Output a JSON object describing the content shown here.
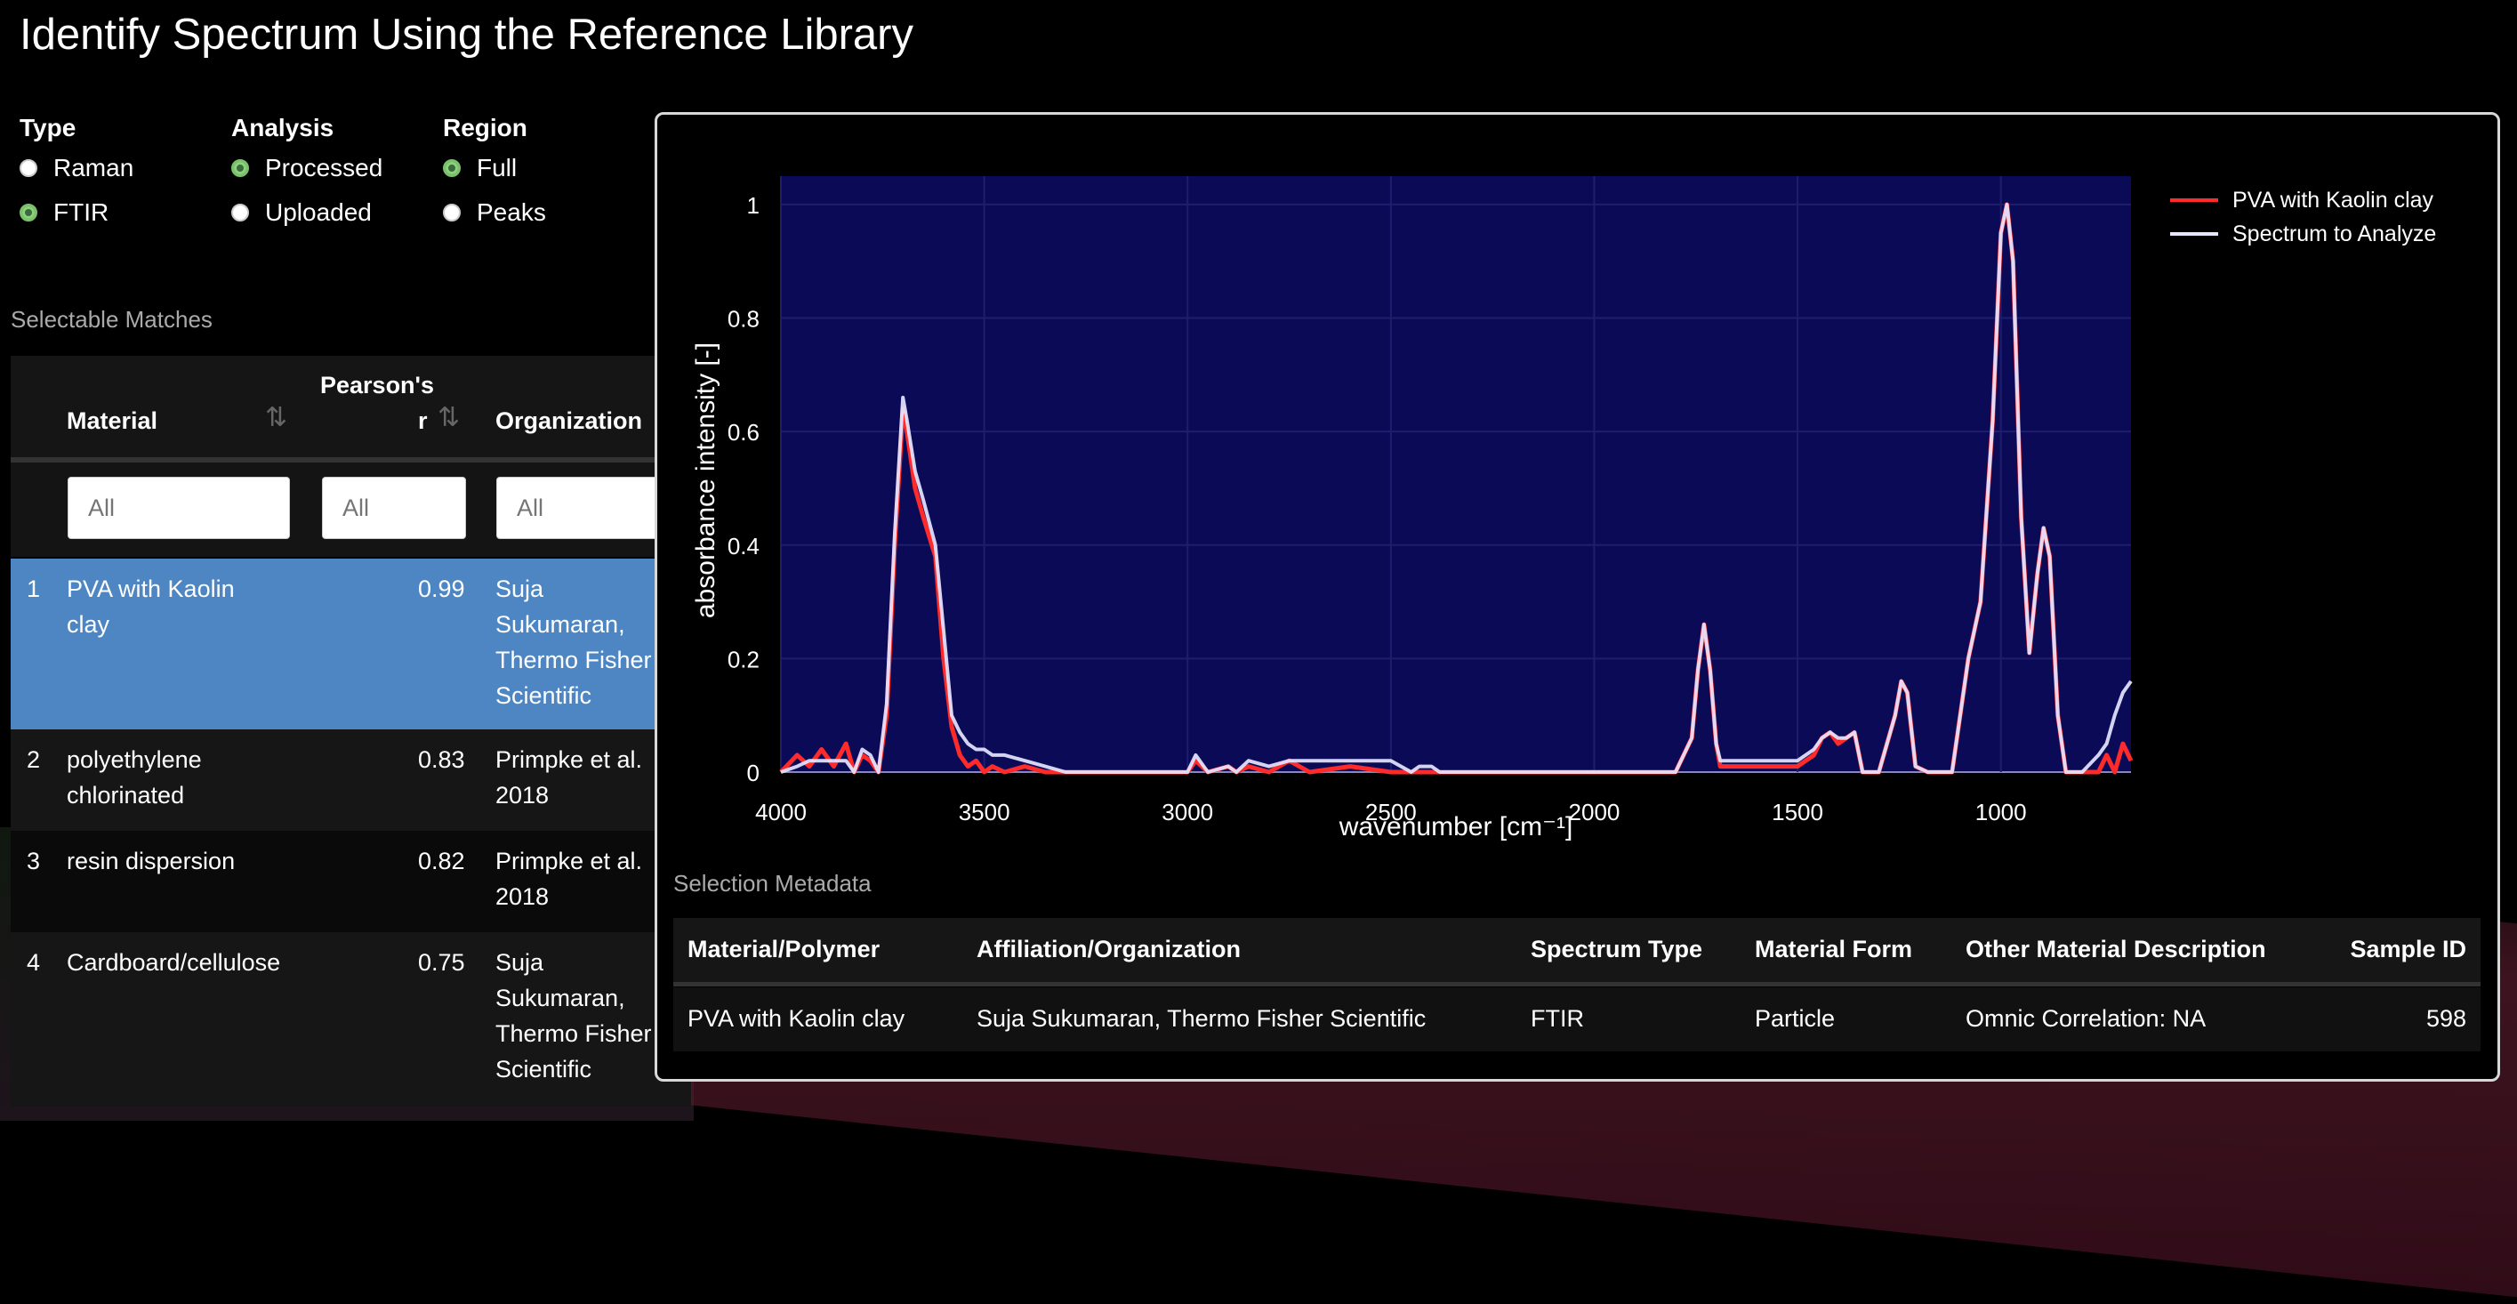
{
  "title": "Identify Spectrum Using the Reference Library",
  "controls": {
    "type": {
      "label": "Type",
      "options": [
        "Raman",
        "FTIR"
      ],
      "selected": "FTIR"
    },
    "analysis": {
      "label": "Analysis",
      "options": [
        "Processed",
        "Uploaded"
      ],
      "selected": "Processed"
    },
    "region": {
      "label": "Region",
      "options": [
        "Full",
        "Peaks"
      ],
      "selected": "Full"
    }
  },
  "matches": {
    "label": "Selectable Matches",
    "headers": {
      "material": "Material",
      "pearson_top": "Pearson's",
      "pearson_bottom": "r",
      "organization": "Organization"
    },
    "filter_placeholder": "All",
    "rows": [
      {
        "index": "1",
        "material_l1": "PVA with Kaolin",
        "material_l2": "clay",
        "r": "0.99",
        "org_l1": "Suja",
        "org_l2": "Sukumaran,",
        "org_l3": "Thermo Fisher",
        "org_l4": "Scientific"
      },
      {
        "index": "2",
        "material_l1": "polyethylene",
        "material_l2": "chlorinated",
        "r": "0.83",
        "org_l1": "Primpke et al.",
        "org_l2": "2018"
      },
      {
        "index": "3",
        "material_l1": "resin dispersion",
        "r": "0.82",
        "org_l1": "Primpke et al.",
        "org_l2": "2018"
      },
      {
        "index": "4",
        "material_l1": "Cardboard/cellulose",
        "r": "0.75",
        "org_l1": "Suja",
        "org_l2": "Sukumaran,",
        "org_l3": "Thermo Fisher",
        "org_l4": "Scientific"
      }
    ]
  },
  "chart_data": {
    "type": "line",
    "xlabel": "wavenumber [cm⁻¹]",
    "ylabel": "absorbance intensity [-]",
    "xlim": [
      4000,
      680
    ],
    "ylim": [
      0,
      1.05
    ],
    "x_reversed": true,
    "xticks": [
      4000,
      3500,
      3000,
      2500,
      2000,
      1500,
      1000
    ],
    "yticks": [
      0,
      0.2,
      0.4,
      0.6,
      0.8,
      1
    ],
    "ytick_labels": [
      "0",
      "0.2",
      "0.4",
      "0.6",
      "0.8",
      "1"
    ],
    "plot_bg": "#0b0a57",
    "legend_position": "top-right",
    "series": [
      {
        "name": "PVA with Kaolin clay",
        "color": "#ff2a2a",
        "x": [
          4000,
          3960,
          3930,
          3900,
          3870,
          3840,
          3820,
          3800,
          3780,
          3760,
          3740,
          3720,
          3700,
          3690,
          3670,
          3650,
          3620,
          3600,
          3580,
          3560,
          3540,
          3520,
          3500,
          3480,
          3450,
          3400,
          3350,
          3300,
          3250,
          3000,
          2980,
          2950,
          2900,
          2880,
          2850,
          2800,
          2750,
          2700,
          2600,
          2500,
          2450,
          2430,
          2400,
          2380,
          2200,
          2000,
          1800,
          1760,
          1745,
          1730,
          1715,
          1700,
          1690,
          1650,
          1600,
          1550,
          1500,
          1460,
          1440,
          1420,
          1400,
          1380,
          1360,
          1340,
          1300,
          1260,
          1245,
          1230,
          1210,
          1180,
          1120,
          1080,
          1050,
          1020,
          1000,
          985,
          970,
          950,
          930,
          910,
          895,
          880,
          860,
          840,
          800,
          760,
          740,
          720,
          700,
          680
        ],
        "y": [
          0,
          0.03,
          0.01,
          0.04,
          0.01,
          0.05,
          0.0,
          0.03,
          0.02,
          0,
          0.1,
          0.4,
          0.64,
          0.6,
          0.5,
          0.45,
          0.38,
          0.2,
          0.08,
          0.03,
          0.01,
          0.02,
          0.0,
          0.01,
          0,
          0.01,
          0,
          0,
          0,
          0,
          0.02,
          0,
          0.01,
          0,
          0.01,
          0,
          0.02,
          0,
          0.01,
          0,
          0,
          0,
          0,
          0,
          0,
          0,
          0,
          0.06,
          0.18,
          0.26,
          0.18,
          0.05,
          0.01,
          0.01,
          0.01,
          0.01,
          0.01,
          0.03,
          0.06,
          0.07,
          0.05,
          0.06,
          0.07,
          0,
          0,
          0.1,
          0.16,
          0.14,
          0.01,
          0,
          0,
          0.2,
          0.3,
          0.62,
          0.95,
          1.0,
          0.9,
          0.45,
          0.21,
          0.35,
          0.43,
          0.38,
          0.1,
          0,
          0,
          0,
          0.03,
          0,
          0.05,
          0.02
        ]
      },
      {
        "name": "Spectrum to Analyze",
        "color": "#e6e6ff",
        "x": [
          4000,
          3960,
          3930,
          3900,
          3870,
          3840,
          3820,
          3800,
          3780,
          3760,
          3740,
          3720,
          3700,
          3690,
          3670,
          3650,
          3620,
          3600,
          3580,
          3560,
          3540,
          3520,
          3500,
          3480,
          3450,
          3400,
          3350,
          3300,
          3250,
          3000,
          2980,
          2950,
          2900,
          2880,
          2850,
          2800,
          2750,
          2700,
          2600,
          2500,
          2450,
          2430,
          2400,
          2380,
          2200,
          2000,
          1800,
          1760,
          1745,
          1730,
          1715,
          1700,
          1690,
          1650,
          1600,
          1550,
          1500,
          1460,
          1440,
          1420,
          1400,
          1380,
          1360,
          1340,
          1300,
          1260,
          1245,
          1230,
          1210,
          1180,
          1120,
          1080,
          1050,
          1020,
          1000,
          985,
          970,
          950,
          930,
          910,
          895,
          880,
          860,
          840,
          800,
          760,
          740,
          720,
          700,
          680
        ],
        "y": [
          0,
          0.01,
          0.02,
          0.02,
          0.02,
          0.02,
          0.0,
          0.04,
          0.03,
          0,
          0.12,
          0.42,
          0.66,
          0.62,
          0.53,
          0.48,
          0.4,
          0.25,
          0.1,
          0.07,
          0.05,
          0.04,
          0.04,
          0.03,
          0.03,
          0.02,
          0.01,
          0,
          0,
          0,
          0.03,
          0,
          0.01,
          0,
          0.02,
          0.01,
          0.02,
          0.02,
          0.02,
          0.02,
          0,
          0.01,
          0.01,
          0,
          0,
          0,
          0,
          0.06,
          0.18,
          0.26,
          0.18,
          0.05,
          0.02,
          0.02,
          0.02,
          0.02,
          0.02,
          0.04,
          0.06,
          0.07,
          0.06,
          0.06,
          0.07,
          0,
          0,
          0.1,
          0.16,
          0.14,
          0.01,
          0,
          0,
          0.2,
          0.3,
          0.62,
          0.95,
          1.0,
          0.9,
          0.45,
          0.21,
          0.35,
          0.43,
          0.38,
          0.1,
          0,
          0,
          0.03,
          0.05,
          0.1,
          0.14,
          0.16
        ]
      }
    ]
  },
  "metadata": {
    "label": "Selection Metadata",
    "headers": [
      "Material/Polymer",
      "Affiliation/Organization",
      "Spectrum Type",
      "Material Form",
      "Other Material Description",
      "Sample ID"
    ],
    "values": [
      "PVA with Kaolin clay",
      "Suja Sukumaran, Thermo Fisher Scientific",
      "FTIR",
      "Particle",
      "Omnic Correlation: NA",
      "598"
    ]
  }
}
